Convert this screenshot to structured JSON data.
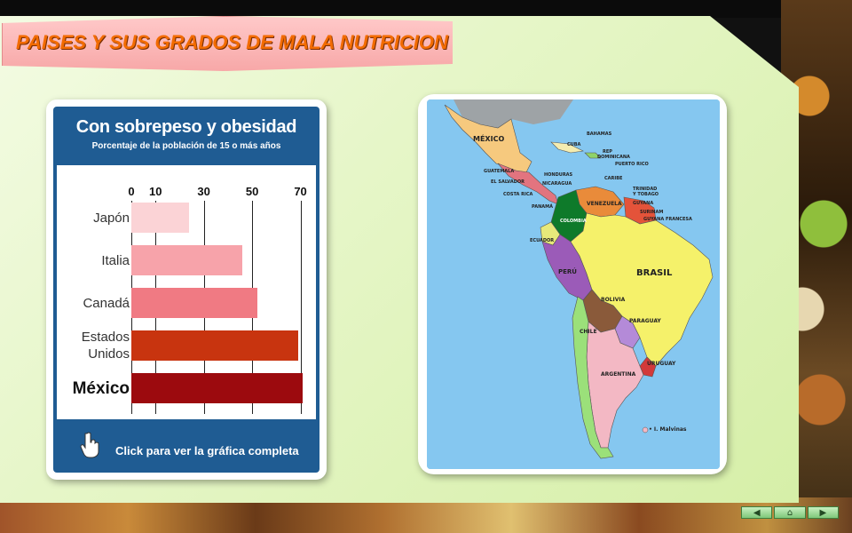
{
  "title": "PAISES Y SUS GRADOS DE MALA NUTRICION",
  "chart": {
    "header_title": "Con sobrepeso y obesidad",
    "header_subtitle": "Porcentaje de la población de 15 o más años",
    "footer_text": "Click para ver la gráfica completa",
    "footer_icon": "hand-pointer-icon"
  },
  "chart_data": {
    "type": "bar",
    "orientation": "horizontal",
    "title": "Con sobrepeso y obesidad",
    "subtitle": "Porcentaje de la población de 15 o más años",
    "x_ticks": [
      0,
      10,
      30,
      50,
      70
    ],
    "xlim": [
      0,
      72
    ],
    "grid": true,
    "categories": [
      "Japón",
      "Italia",
      "Canadá",
      "Estados Unidos",
      "México"
    ],
    "category_lines": [
      [
        "Japón"
      ],
      [
        "Italia"
      ],
      [
        "Canadá"
      ],
      [
        "Estados",
        "Unidos"
      ],
      [
        "México"
      ]
    ],
    "values": [
      24,
      46,
      52,
      69,
      71
    ],
    "colors": [
      "#fbd3d6",
      "#f7a3aa",
      "#f07a83",
      "#c8340f",
      "#9c0a0e"
    ]
  },
  "map": {
    "labels": {
      "mexico": "MÉXICO",
      "bahamas": "BAHAMAS",
      "cuba": "CUBA",
      "rep": "REP",
      "dominicana": "DOMINICANA",
      "puerto_rico": "PUERTO RICO",
      "guatemala": "GUATEMALA",
      "honduras": "HONDURAS",
      "el_salvador": "EL SALVADOR",
      "nicaragua": "NICARAGUA",
      "caribe": "CARIBE",
      "trinidad": "TRINIDAD",
      "tobago": "Y TOBAGO",
      "costa_rica": "COSTA RICA",
      "panama": "PANAMÁ",
      "venezuela": "VENEZUELA",
      "guyana": "GUYANA",
      "surinam": "SURINAM",
      "guyana_francesa": "GUYANA FRANCESA",
      "colombia": "COLOMBIA",
      "ecuador": "ECUADOR",
      "peru": "PERÚ",
      "brasil": "BRASIL",
      "bolivia": "BOLIVIA",
      "paraguay": "PARAGUAY",
      "chile": "CHILE",
      "uruguay": "URUGUAY",
      "argentina": "ARGENTINA",
      "malvinas": "• I. Malvinas"
    },
    "colors": {
      "ocean": "#85c7f0",
      "usa": "#9ea3a6",
      "mexico": "#f6c97e",
      "brasil": "#f5f16a",
      "argentina": "#f3b8c4",
      "peru": "#9b5bb8",
      "bolivia": "#8a5a3a",
      "colombia": "#0e7a2a",
      "venezuela": "#e98b3a",
      "paraguay": "#b48ad8",
      "chile": "#9be07a",
      "ecuador": "#e7e97a",
      "uruguay": "#d23a3a"
    }
  },
  "nav": {
    "prev_icon": "◀",
    "home_icon": "⌂",
    "next_icon": "▶"
  }
}
